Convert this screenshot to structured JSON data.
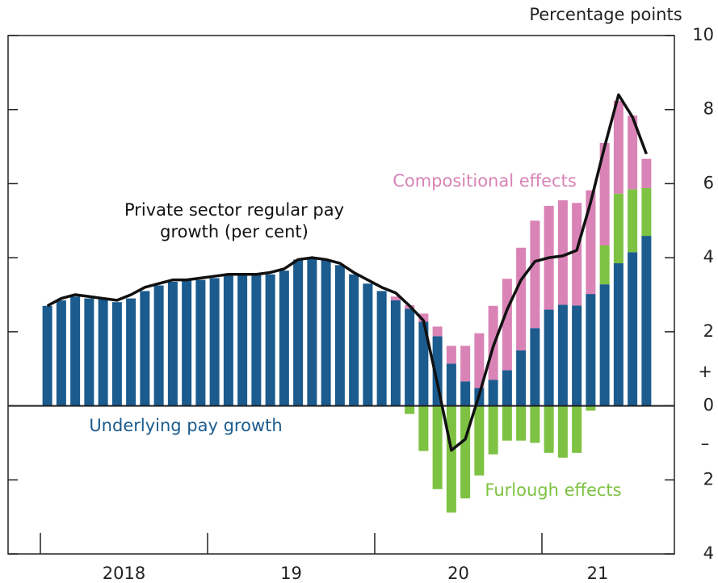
{
  "chart_data": {
    "type": "bar",
    "stacked": true,
    "units_label": "Percentage points",
    "sign_labels": [
      "+",
      "–"
    ],
    "categories": [
      null,
      null,
      null,
      null,
      null,
      null,
      "2018",
      null,
      null,
      null,
      null,
      null,
      null,
      null,
      null,
      null,
      null,
      null,
      "19",
      null,
      null,
      null,
      null,
      null,
      null,
      null,
      null,
      null,
      null,
      null,
      "20",
      null,
      null,
      null,
      null,
      null,
      null,
      null,
      null,
      null,
      "21",
      null,
      null,
      null
    ],
    "ylim": [
      -4,
      10
    ],
    "yticks": [
      {
        "value": -4,
        "label": "4"
      },
      {
        "value": -2,
        "label": "2"
      },
      0,
      2,
      4,
      6,
      8,
      10
    ],
    "series": [
      {
        "name": "Underlying pay growth",
        "color": "#1b5b8e",
        "values": [
          2.7,
          2.85,
          2.95,
          2.9,
          2.9,
          2.8,
          2.9,
          3.1,
          3.25,
          3.35,
          3.4,
          3.4,
          3.45,
          3.55,
          3.55,
          3.55,
          3.55,
          3.65,
          3.95,
          4.0,
          3.95,
          3.8,
          3.55,
          3.3,
          3.1,
          2.85,
          2.62,
          2.27,
          1.88,
          1.14,
          0.66,
          0.48,
          0.7,
          0.96,
          1.5,
          2.1,
          2.6,
          2.73,
          2.71,
          3.02,
          3.28,
          3.85,
          4.15,
          4.59
        ]
      },
      {
        "name": "Furlough effects",
        "color": "#7dc242",
        "values": [
          null,
          null,
          null,
          null,
          null,
          null,
          null,
          null,
          null,
          null,
          null,
          null,
          null,
          null,
          null,
          null,
          null,
          null,
          null,
          null,
          null,
          null,
          null,
          null,
          null,
          0,
          -0.22,
          -1.22,
          -2.25,
          -2.88,
          -2.5,
          -1.88,
          -1.31,
          -0.94,
          -0.94,
          -1.0,
          -1.27,
          -1.4,
          -1.27,
          -0.13,
          1.05,
          1.88,
          1.7,
          1.29
        ]
      },
      {
        "name": "Compositional effects",
        "color": "#d983b6",
        "values": [
          null,
          null,
          null,
          null,
          null,
          null,
          null,
          null,
          null,
          null,
          null,
          null,
          null,
          null,
          null,
          null,
          null,
          null,
          null,
          null,
          null,
          null,
          null,
          null,
          null,
          0.1,
          0.1,
          0.22,
          0.26,
          0.48,
          0.96,
          1.48,
          2.0,
          2.47,
          2.77,
          2.9,
          2.8,
          2.82,
          2.77,
          2.8,
          2.77,
          2.51,
          1.99,
          0.79
        ]
      },
      {
        "name": "Private sector regular pay growth (per cent)",
        "type": "line",
        "color": "#111111",
        "values": [
          2.7,
          2.9,
          3.0,
          2.95,
          2.9,
          2.85,
          3.0,
          3.2,
          3.3,
          3.4,
          3.4,
          3.45,
          3.5,
          3.55,
          3.55,
          3.55,
          3.6,
          3.7,
          3.95,
          4.0,
          3.95,
          3.85,
          3.6,
          3.4,
          3.2,
          3.05,
          2.7,
          2.3,
          0.6,
          -1.2,
          -0.9,
          0.3,
          1.6,
          2.6,
          3.4,
          3.9,
          4.0,
          4.05,
          4.2,
          5.5,
          7.0,
          8.4,
          7.8,
          6.8
        ]
      }
    ]
  }
}
